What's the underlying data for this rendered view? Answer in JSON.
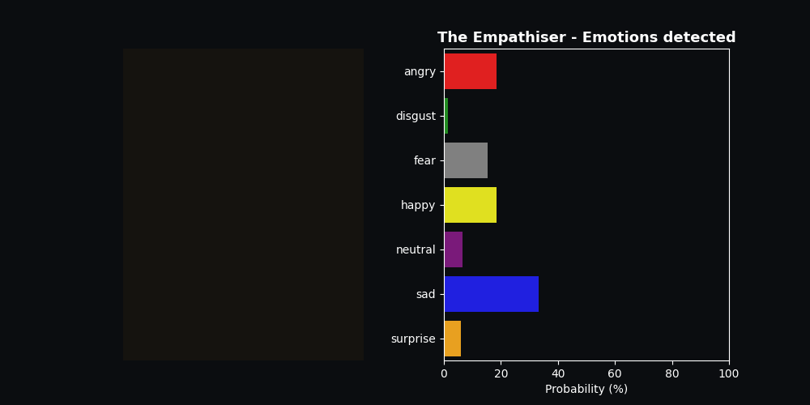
{
  "chart_data": {
    "type": "bar",
    "orientation": "horizontal",
    "title": "The Empathiser - Emotions detected",
    "x_label": "Probability (%)",
    "categories": [
      "angry",
      "disgust",
      "fear",
      "happy",
      "neutral",
      "sad",
      "surprise"
    ],
    "values": [
      18.5,
      1.5,
      15.3,
      18.5,
      6.5,
      33.2,
      6.0
    ],
    "colors": [
      "#e02020",
      "#228b22",
      "#808080",
      "#e0e020",
      "#7a1a7a",
      "#2020e0",
      "#e8a020"
    ],
    "xlim": [
      0,
      100
    ],
    "xticks": [
      0,
      20,
      40,
      60,
      80,
      100
    ],
    "grid": false
  }
}
